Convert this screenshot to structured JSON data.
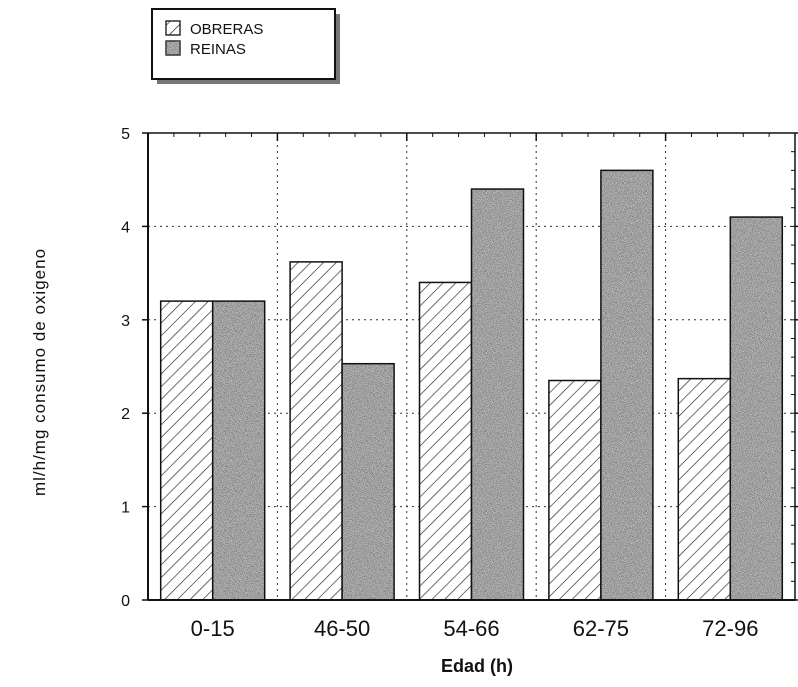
{
  "chart_data": {
    "type": "bar",
    "categories": [
      "0-15",
      "46-50",
      "54-66",
      "62-75",
      "72-96"
    ],
    "series": [
      {
        "name": "OBRERAS",
        "values": [
          3.2,
          3.62,
          3.4,
          2.35,
          2.37
        ],
        "pattern": "hatch",
        "color": "#222222"
      },
      {
        "name": "REINAS",
        "values": [
          3.2,
          2.53,
          4.4,
          4.6,
          4.1
        ],
        "pattern": "stipple",
        "color": "#555555"
      }
    ],
    "title": "",
    "xlabel": "Edad (h)",
    "ylabel": "ml/h/mg consumo de oxigeno",
    "ylim": [
      0,
      5
    ],
    "yticks": [
      "0",
      "1",
      "2",
      "3",
      "4",
      "5"
    ],
    "grid": true,
    "legend_position": "top-left"
  }
}
